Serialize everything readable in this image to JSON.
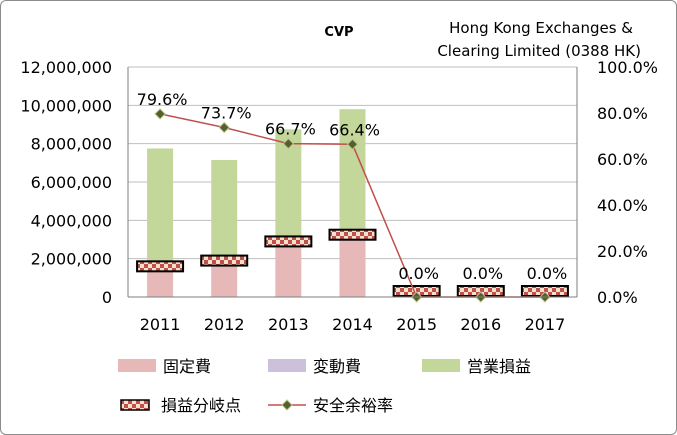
{
  "chart_data": {
    "type": "bar",
    "title": "CVP",
    "company": [
      "Hong Kong Exchanges &",
      "Clearing Limited (0388 HK)"
    ],
    "categories": [
      "2011",
      "2012",
      "2013",
      "2014",
      "2015",
      "2016",
      "2017"
    ],
    "y_left": {
      "ylim": [
        0,
        12000000
      ],
      "ticks": [
        "0",
        "2,000,000",
        "4,000,000",
        "6,000,000",
        "8,000,000",
        "10,000,000",
        "12,000,000"
      ],
      "tick_values": [
        0,
        2000000,
        4000000,
        6000000,
        8000000,
        10000000,
        12000000
      ]
    },
    "y_right": {
      "ylim": [
        0,
        100
      ],
      "ticks": [
        "0.0%",
        "20.0%",
        "40.0%",
        "60.0%",
        "80.0%",
        "100.0%"
      ],
      "tick_values": [
        0,
        20,
        40,
        60,
        80,
        100
      ]
    },
    "series": [
      {
        "name": "固定費",
        "kind": "stacked_bar",
        "color": "#e6b8b7",
        "values": [
          1600000,
          1900000,
          2900000,
          3200000,
          0,
          0,
          0
        ]
      },
      {
        "name": "変動費",
        "kind": "stacked_bar",
        "color": "#ccc0da",
        "values": [
          0,
          0,
          0,
          0,
          0,
          0,
          0
        ]
      },
      {
        "name": "営業損益",
        "kind": "stacked_bar",
        "color": "#c4d79b",
        "values": [
          6150000,
          5250000,
          5850000,
          6600000,
          0,
          0,
          0
        ]
      },
      {
        "name": "損益分岐点",
        "kind": "marker_bar",
        "values": [
          1600000,
          1900000,
          2900000,
          3250000,
          0,
          0,
          0
        ]
      },
      {
        "name": "安全余裕率",
        "kind": "line",
        "axis": "right",
        "color": "#c0504d",
        "marker_color": "#4f6228",
        "values": [
          79.6,
          73.7,
          66.7,
          66.4,
          0.0,
          0.0,
          0.0
        ],
        "labels": [
          "79.6%",
          "73.7%",
          "66.7%",
          "66.4%",
          "0.0%",
          "0.0%",
          "0.0%"
        ]
      }
    ],
    "legend": {
      "position": "bottom",
      "entries": [
        "固定費",
        "変動費",
        "営業損益",
        "損益分岐点",
        "安全余裕率"
      ]
    }
  }
}
